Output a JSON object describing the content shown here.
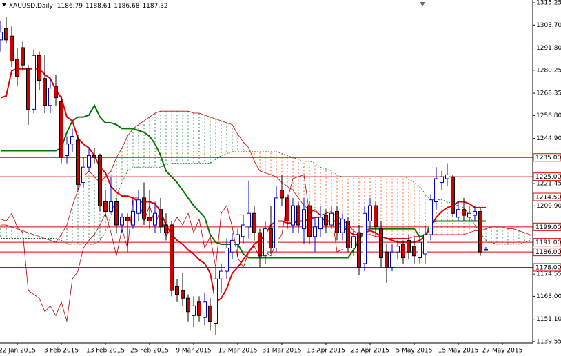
{
  "chart_data": {
    "type": "candlestick",
    "symbol": "XAUUSD,Daily",
    "ohlc_header": [
      1186.79,
      1188.61,
      1186.68,
      1187.32
    ],
    "categories": [
      null,
      null,
      null,
      "22 Jan 2015",
      null,
      null,
      null,
      null,
      null,
      null,
      null,
      "3 Feb 2015",
      null,
      null,
      null,
      null,
      null,
      null,
      null,
      "13 Feb 2015",
      null,
      null,
      null,
      null,
      null,
      null,
      null,
      "25 Feb 2015",
      null,
      null,
      null,
      null,
      null,
      null,
      null,
      "9 Mar 2015",
      null,
      null,
      null,
      null,
      null,
      null,
      null,
      "19 Mar 2015",
      null,
      null,
      null,
      null,
      null,
      null,
      null,
      "31 Mar 2015",
      null,
      null,
      null,
      null,
      null,
      null,
      null,
      "13 Apr 2015",
      null,
      null,
      null,
      null,
      null,
      null,
      null,
      "23 Apr 2015",
      null,
      null,
      null,
      null,
      null,
      null,
      null,
      "5 May 2015",
      null,
      null,
      null,
      null,
      null,
      null,
      null,
      "15 May 2015",
      null,
      null,
      null,
      null,
      null,
      null,
      null,
      "27 May 2015",
      null,
      null,
      null,
      null,
      null
    ],
    "open": [
      1296,
      1302,
      1298,
      1286,
      1292,
      1281,
      1260,
      1288,
      1276,
      1262,
      1272,
      1264,
      1236,
      1242,
      1244,
      1222,
      1230,
      1236,
      1236,
      1212,
      1207,
      1212,
      1200,
      1204,
      1200,
      1206,
      1214,
      1204,
      1200,
      1208,
      1200,
      1200,
      1168,
      1166,
      1162,
      1153,
      1160,
      1152,
      1158,
      1149,
      1172,
      1176,
      1186,
      1190,
      1194,
      1199,
      1206,
      1196,
      1184,
      1198,
      1188,
      1218,
      1214,
      1200,
      1210,
      1198,
      1210,
      1194,
      1198,
      1205,
      1200,
      1207,
      1196,
      1202,
      1188,
      1196,
      1180,
      1202,
      1210,
      1198,
      1186,
      1178,
      1186,
      1190,
      1192,
      1189,
      1183,
      1185,
      1195,
      1212,
      1222,
      1224,
      1225,
      1204,
      1208,
      1204,
      1205,
      1207,
      1186.79,
      null,
      null,
      null,
      null,
      null,
      null,
      null,
      null
    ],
    "high": [
      1306,
      1308,
      1303,
      1292,
      1295,
      1283,
      1291,
      1290,
      1288,
      1276,
      1278,
      1267,
      1246,
      1250,
      1247,
      1235,
      1240,
      1240,
      1237,
      1218,
      1225,
      1214,
      1206,
      1206,
      1213,
      1218,
      1222,
      1218,
      1212,
      1214,
      1206,
      1202,
      1172,
      1175,
      1164,
      1163,
      1163,
      1165,
      1162,
      1178,
      1180,
      1193,
      1196,
      1198,
      1205,
      1223,
      1210,
      1198,
      1202,
      1210,
      1220,
      1226,
      1216,
      1214,
      1212,
      1214,
      1212,
      1204,
      1210,
      1208,
      1210,
      1210,
      1206,
      1204,
      1198,
      1200,
      1210,
      1214,
      1212,
      1202,
      1190,
      1190,
      1192,
      1192,
      1195,
      1194,
      1194,
      1200,
      1216,
      1230,
      1228,
      1232,
      1226,
      1212,
      1214,
      1210,
      1210,
      1209,
      1188.61,
      null,
      null,
      null,
      null,
      null,
      null,
      null,
      null
    ],
    "low": [
      1290,
      1294,
      1282,
      1272,
      1280,
      1252,
      1258,
      1270,
      1258,
      1258,
      1262,
      1232,
      1232,
      1238,
      1218,
      1219,
      1228,
      1232,
      1207,
      1204,
      1206,
      1196,
      1196,
      1186,
      1198,
      1202,
      1200,
      1198,
      1196,
      1196,
      1192,
      1163,
      1160,
      1158,
      1150,
      1147,
      1150,
      1148,
      1145,
      1143,
      1165,
      1172,
      1182,
      1184,
      1190,
      1193,
      1192,
      1178,
      1180,
      1185,
      1186,
      1210,
      1198,
      1196,
      1196,
      1190,
      1190,
      1186,
      1194,
      1196,
      1198,
      1192,
      1192,
      1186,
      1184,
      1174,
      1176,
      1198,
      1195,
      1178,
      1170,
      1176,
      1182,
      1180,
      1182,
      1180,
      1180,
      1180,
      1192,
      1208,
      1218,
      1220,
      1204,
      1202,
      1202,
      1202,
      1202,
      1184,
      1186.68,
      null,
      null,
      null,
      null,
      null,
      null,
      null,
      null
    ],
    "close": [
      1300,
      1296,
      1285,
      1277,
      1283,
      1260,
      1288,
      1275,
      1262,
      1271,
      1266,
      1235,
      1242,
      1246,
      1221,
      1230,
      1236,
      1235,
      1210,
      1207,
      1212,
      1200,
      1204,
      1202,
      1207,
      1213,
      1203,
      1202,
      1206,
      1199,
      1196,
      1166,
      1164,
      1162,
      1155,
      1158,
      1153,
      1160,
      1150,
      1172,
      1176,
      1188,
      1192,
      1195,
      1200,
      1206,
      1196,
      1184,
      1198,
      1188,
      1214,
      1214,
      1202,
      1210,
      1200,
      1208,
      1194,
      1199,
      1204,
      1200,
      1206,
      1196,
      1203,
      1188,
      1194,
      1178,
      1206,
      1210,
      1199,
      1183,
      1178,
      1186,
      1189,
      1183,
      1186,
      1184,
      1191,
      1195,
      1213,
      1224,
      1225,
      1226,
      1206,
      1208,
      1205,
      1206,
      1207,
      1186,
      1187.32,
      null,
      null,
      null,
      null,
      null,
      null,
      null,
      null
    ],
    "bull_color": "#0000cc",
    "bear_color": "#cc0000",
    "tenkan": {
      "color": "#e00000",
      "values": [
        1266,
        1267,
        1280,
        1281,
        1281,
        1281,
        1281,
        1281,
        1278,
        1276,
        1270,
        1266,
        1256,
        1254,
        1245,
        1242,
        1240,
        1236,
        1230,
        1227,
        1220,
        1217,
        1215,
        1215,
        1214,
        1212,
        1212,
        1212,
        1211,
        1207,
        1200,
        1195,
        1192,
        1190,
        1187,
        1185,
        1182,
        1180,
        1175,
        1160,
        1162,
        1167,
        1175,
        1178,
        1182,
        1186,
        1190,
        1192,
        1195,
        1200,
        1202,
        1202,
        1201,
        1201,
        1202,
        1202,
        1203,
        1204,
        1204,
        1202,
        1202,
        1202,
        1199,
        1197,
        1195,
        1195,
        1196,
        1197,
        1196,
        1194,
        1193,
        1192,
        1191,
        1191,
        1191,
        1191,
        1192,
        1194,
        1199,
        1204,
        1207,
        1209,
        1210,
        1212,
        1212,
        1211,
        1209,
        1209,
        1209,
        null,
        null,
        null,
        null,
        null,
        null,
        null,
        null
      ]
    },
    "kijun": {
      "color": "#007800",
      "values": [
        1238.5,
        1238.5,
        1238.5,
        1238.5,
        1238.5,
        1238.5,
        1238.5,
        1238.5,
        1238.5,
        1238.5,
        1238.5,
        1240,
        1248,
        1254,
        1256,
        1256,
        1257,
        1262,
        1256,
        1253,
        1253,
        1252,
        1250,
        1250,
        1250,
        1249,
        1248,
        1246,
        1242,
        1236,
        1228,
        1225,
        1222,
        1218,
        1214,
        1210,
        1207,
        1204,
        1195,
        1191,
        1190,
        1190,
        1190,
        1190,
        1185,
        1183,
        1183,
        1183,
        1183,
        1183,
        1183,
        1183,
        1183,
        1183,
        1183,
        1183,
        1183,
        1183,
        1183,
        1183,
        1183,
        1183,
        1183,
        1183,
        1187,
        1192,
        1197,
        1198,
        1198,
        1198,
        1198,
        1198,
        1198,
        1198,
        1198,
        1198,
        1194,
        1194,
        1201,
        1202,
        1202,
        1202,
        1202,
        1202,
        1202,
        1202,
        1202,
        1202,
        1202,
        null,
        null,
        null,
        null,
        null,
        null,
        null,
        null
      ]
    },
    "chikou": {
      "color": "#b00000",
      "values": [
        1203,
        1202,
        1206,
        1199,
        1196,
        1166,
        1164,
        1162,
        1155,
        1158,
        1153,
        1160,
        1150,
        1172,
        1176,
        1188,
        1192,
        1195,
        1200,
        1206,
        1196,
        1184,
        1198,
        1188,
        1214,
        1214,
        1202,
        1210,
        1200,
        1208,
        1194,
        1199,
        1204,
        1200,
        1206,
        1196,
        1203,
        1188,
        1194,
        1178,
        1206,
        1210,
        1199,
        1183,
        1178,
        1186,
        1189,
        1183,
        1186,
        1184,
        1191,
        1195,
        1213,
        1224,
        1225,
        1226,
        1206,
        1208,
        1205,
        1206,
        1207,
        1186,
        1187.32,
        null,
        null,
        null,
        null,
        null,
        null,
        null,
        null,
        null,
        null,
        null,
        null,
        null,
        null,
        null,
        null,
        null,
        null,
        null,
        null,
        null,
        null,
        null,
        null,
        null,
        null,
        null,
        null,
        null,
        null,
        null,
        null,
        null,
        null,
        null,
        null,
        null,
        null,
        null
      ]
    },
    "span_a": {
      "color": "#cc0000",
      "values": [
        1200,
        1200,
        1199,
        1198,
        1197,
        1196,
        1195,
        1194,
        1193,
        1192,
        1191,
        1195,
        1200,
        1210,
        1218,
        1225,
        1228,
        1225,
        1222,
        1225,
        1228,
        1235,
        1240,
        1246,
        1250,
        1252,
        1254,
        1256,
        1258,
        1259,
        1259,
        1259,
        1259,
        1259,
        1259,
        1258,
        1258,
        1257,
        1256,
        1255,
        1254,
        1253,
        1252,
        1247,
        1243,
        1240,
        1233,
        1228,
        1227,
        1226,
        1225,
        1222,
        1220,
        1218,
        1214,
        1210,
        1208,
        1207,
        1205,
        1206,
        1207,
        1204,
        1203,
        1200,
        1197,
        1195,
        1195,
        1195,
        1194,
        1194,
        1193,
        1193,
        1193,
        1193,
        1193,
        1194,
        1194,
        1195,
        1195,
        1195,
        1195,
        1195,
        1195,
        1195,
        1195,
        1196,
        1197,
        1197,
        1198,
        1199,
        1199,
        1199,
        1198,
        1198,
        1197,
        1196,
        1195
      ]
    },
    "span_b": {
      "color": "#006400",
      "values": [
        1193,
        1193,
        1193,
        1193,
        1193,
        1193,
        1193,
        1193,
        1193,
        1193,
        1193,
        1192,
        1190,
        1190,
        1190,
        1190,
        1190,
        1190,
        1192,
        1196,
        1205,
        1215,
        1222,
        1228,
        1230,
        1230,
        1230,
        1230,
        1230,
        1230,
        1231,
        1232,
        1232,
        1232,
        1232,
        1232,
        1232,
        1232,
        1232,
        1234,
        1236,
        1237,
        1238,
        1238,
        1238,
        1238,
        1238,
        1238,
        1238,
        1238,
        1238,
        1237,
        1236,
        1235,
        1234,
        1233,
        1233,
        1232,
        1230,
        1229,
        1228,
        1226,
        1225,
        1225,
        1225,
        1225,
        1225,
        1225,
        1225,
        1225,
        1225,
        1225,
        1225,
        1225,
        1224,
        1222,
        1220,
        1216,
        1213,
        1213,
        1213,
        1212,
        1211,
        1210,
        1209,
        1205,
        1200,
        1196,
        1192,
        1191,
        1190,
        1190,
        1190,
        1190,
        1190,
        1191,
        1192
      ]
    },
    "cloud_up_color": "#2e8b57",
    "cloud_down_color": "#ff5a1f",
    "level_color": "#e00000",
    "levels": [
      {
        "value": 1235,
        "label": "1235.00"
      },
      {
        "value": 1225,
        "label": "1225.00"
      },
      {
        "value": 1214.5,
        "label": "1214.50"
      },
      {
        "value": 1199,
        "label": "1199.00"
      },
      {
        "value": 1191,
        "label": "1191.00"
      },
      {
        "value": 1186,
        "label": "1186.00"
      },
      {
        "value": 1178,
        "label": "1178.00"
      }
    ],
    "ylim": [
      1138.8,
      1316.7
    ],
    "yticks": [
      1315.25,
      {
        "value": 1303.7,
        "label": "1303.70"
      },
      {
        "value": 1291.8,
        "label": "1291.80"
      },
      1280.25,
      1268.35,
      {
        "value": 1256.8,
        "label": "1256.80"
      },
      {
        "value": 1244.9,
        "label": "1244.90"
      },
      1221.45,
      {
        "value": 1209.9,
        "label": "1209.90"
      },
      1174.55,
      {
        "value": 1163,
        "label": "1163.00"
      },
      {
        "value": 1151.1,
        "label": "1151.10"
      },
      1139.55
    ]
  }
}
